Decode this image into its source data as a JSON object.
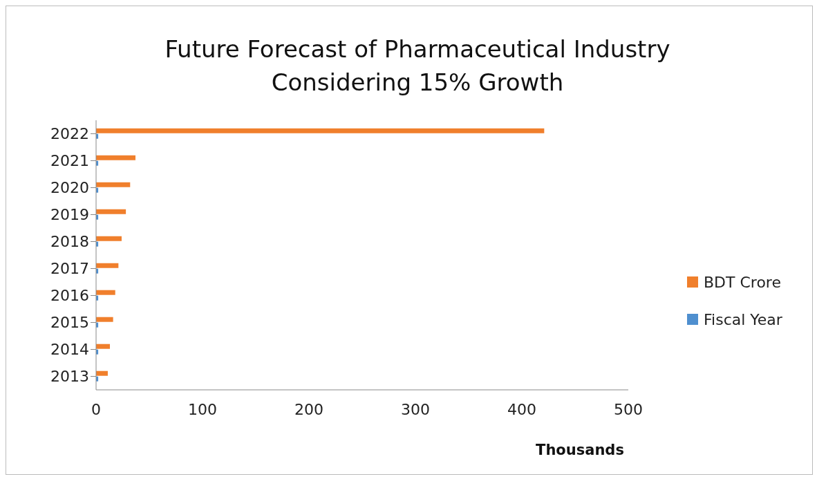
{
  "chart_data": {
    "type": "bar",
    "orientation": "horizontal",
    "title": "Future Forecast of Pharmaceutical Industry\nConsidering 15% Growth",
    "xlabel": "Thousands",
    "categories": [
      "2022",
      "2021",
      "2020",
      "2019",
      "2018",
      "2017",
      "2016",
      "2015",
      "2014",
      "2013"
    ],
    "series": [
      {
        "name": "BDT Crore",
        "color": "#f07f2c",
        "values": [
          421,
          37,
          32,
          28,
          24,
          21,
          18,
          16,
          13,
          11
        ]
      },
      {
        "name": "Fiscal Year",
        "color": "#4f8fcf",
        "values": [
          2,
          2,
          2,
          2,
          2,
          2,
          2,
          2,
          2,
          2
        ]
      }
    ],
    "xlim": [
      0,
      500
    ],
    "xticks": [
      0,
      100,
      200,
      300,
      400,
      500
    ],
    "grid": false,
    "legend": "right"
  }
}
